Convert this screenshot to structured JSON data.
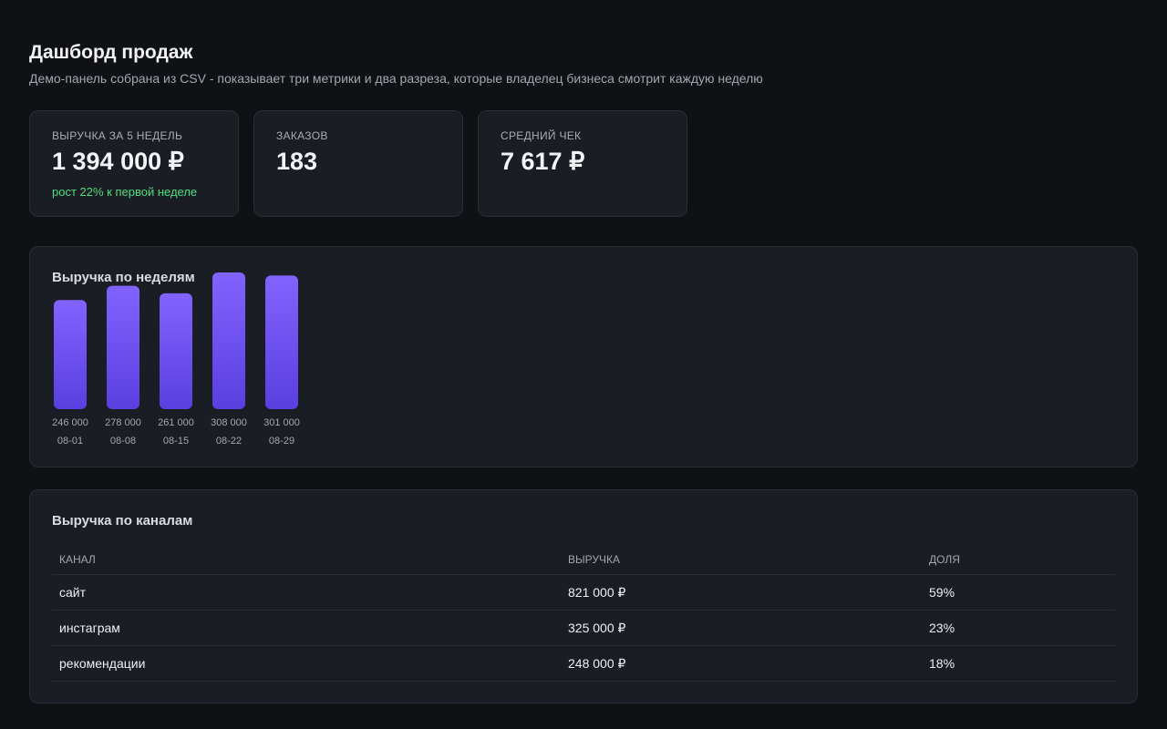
{
  "header": {
    "title": "Дашборд продаж",
    "subtitle": "Демо-панель собрана из CSV - показывает три метрики и два разреза, которые владелец бизнеса смотрит каждую неделю"
  },
  "kpis": [
    {
      "label": "ВЫРУЧКА ЗА 5 НЕДЕЛЬ",
      "value": "1 394 000 ₽",
      "note": "рост 22% к первой неделе"
    },
    {
      "label": "ЗАКАЗОВ",
      "value": "183"
    },
    {
      "label": "СРЕДНИЙ ЧЕК",
      "value": "7 617 ₽"
    }
  ],
  "chart_data": {
    "type": "bar",
    "title": "Выручка по неделям",
    "categories": [
      "08-01",
      "08-08",
      "08-15",
      "08-22",
      "08-29"
    ],
    "values": [
      246000,
      278000,
      261000,
      308000,
      301000
    ],
    "value_labels": [
      "246 000",
      "278 000",
      "261 000",
      "308 000",
      "301 000"
    ],
    "color": "#7c5cff"
  },
  "table": {
    "title": "Выручка по каналам",
    "columns": [
      "КАНАЛ",
      "ВЫРУЧКА",
      "ДОЛЯ"
    ],
    "rows": [
      [
        "сайт",
        "821 000 ₽",
        "59%"
      ],
      [
        "инстаграм",
        "325 000 ₽",
        "23%"
      ],
      [
        "рекомендации",
        "248 000 ₽",
        "18%"
      ]
    ]
  }
}
